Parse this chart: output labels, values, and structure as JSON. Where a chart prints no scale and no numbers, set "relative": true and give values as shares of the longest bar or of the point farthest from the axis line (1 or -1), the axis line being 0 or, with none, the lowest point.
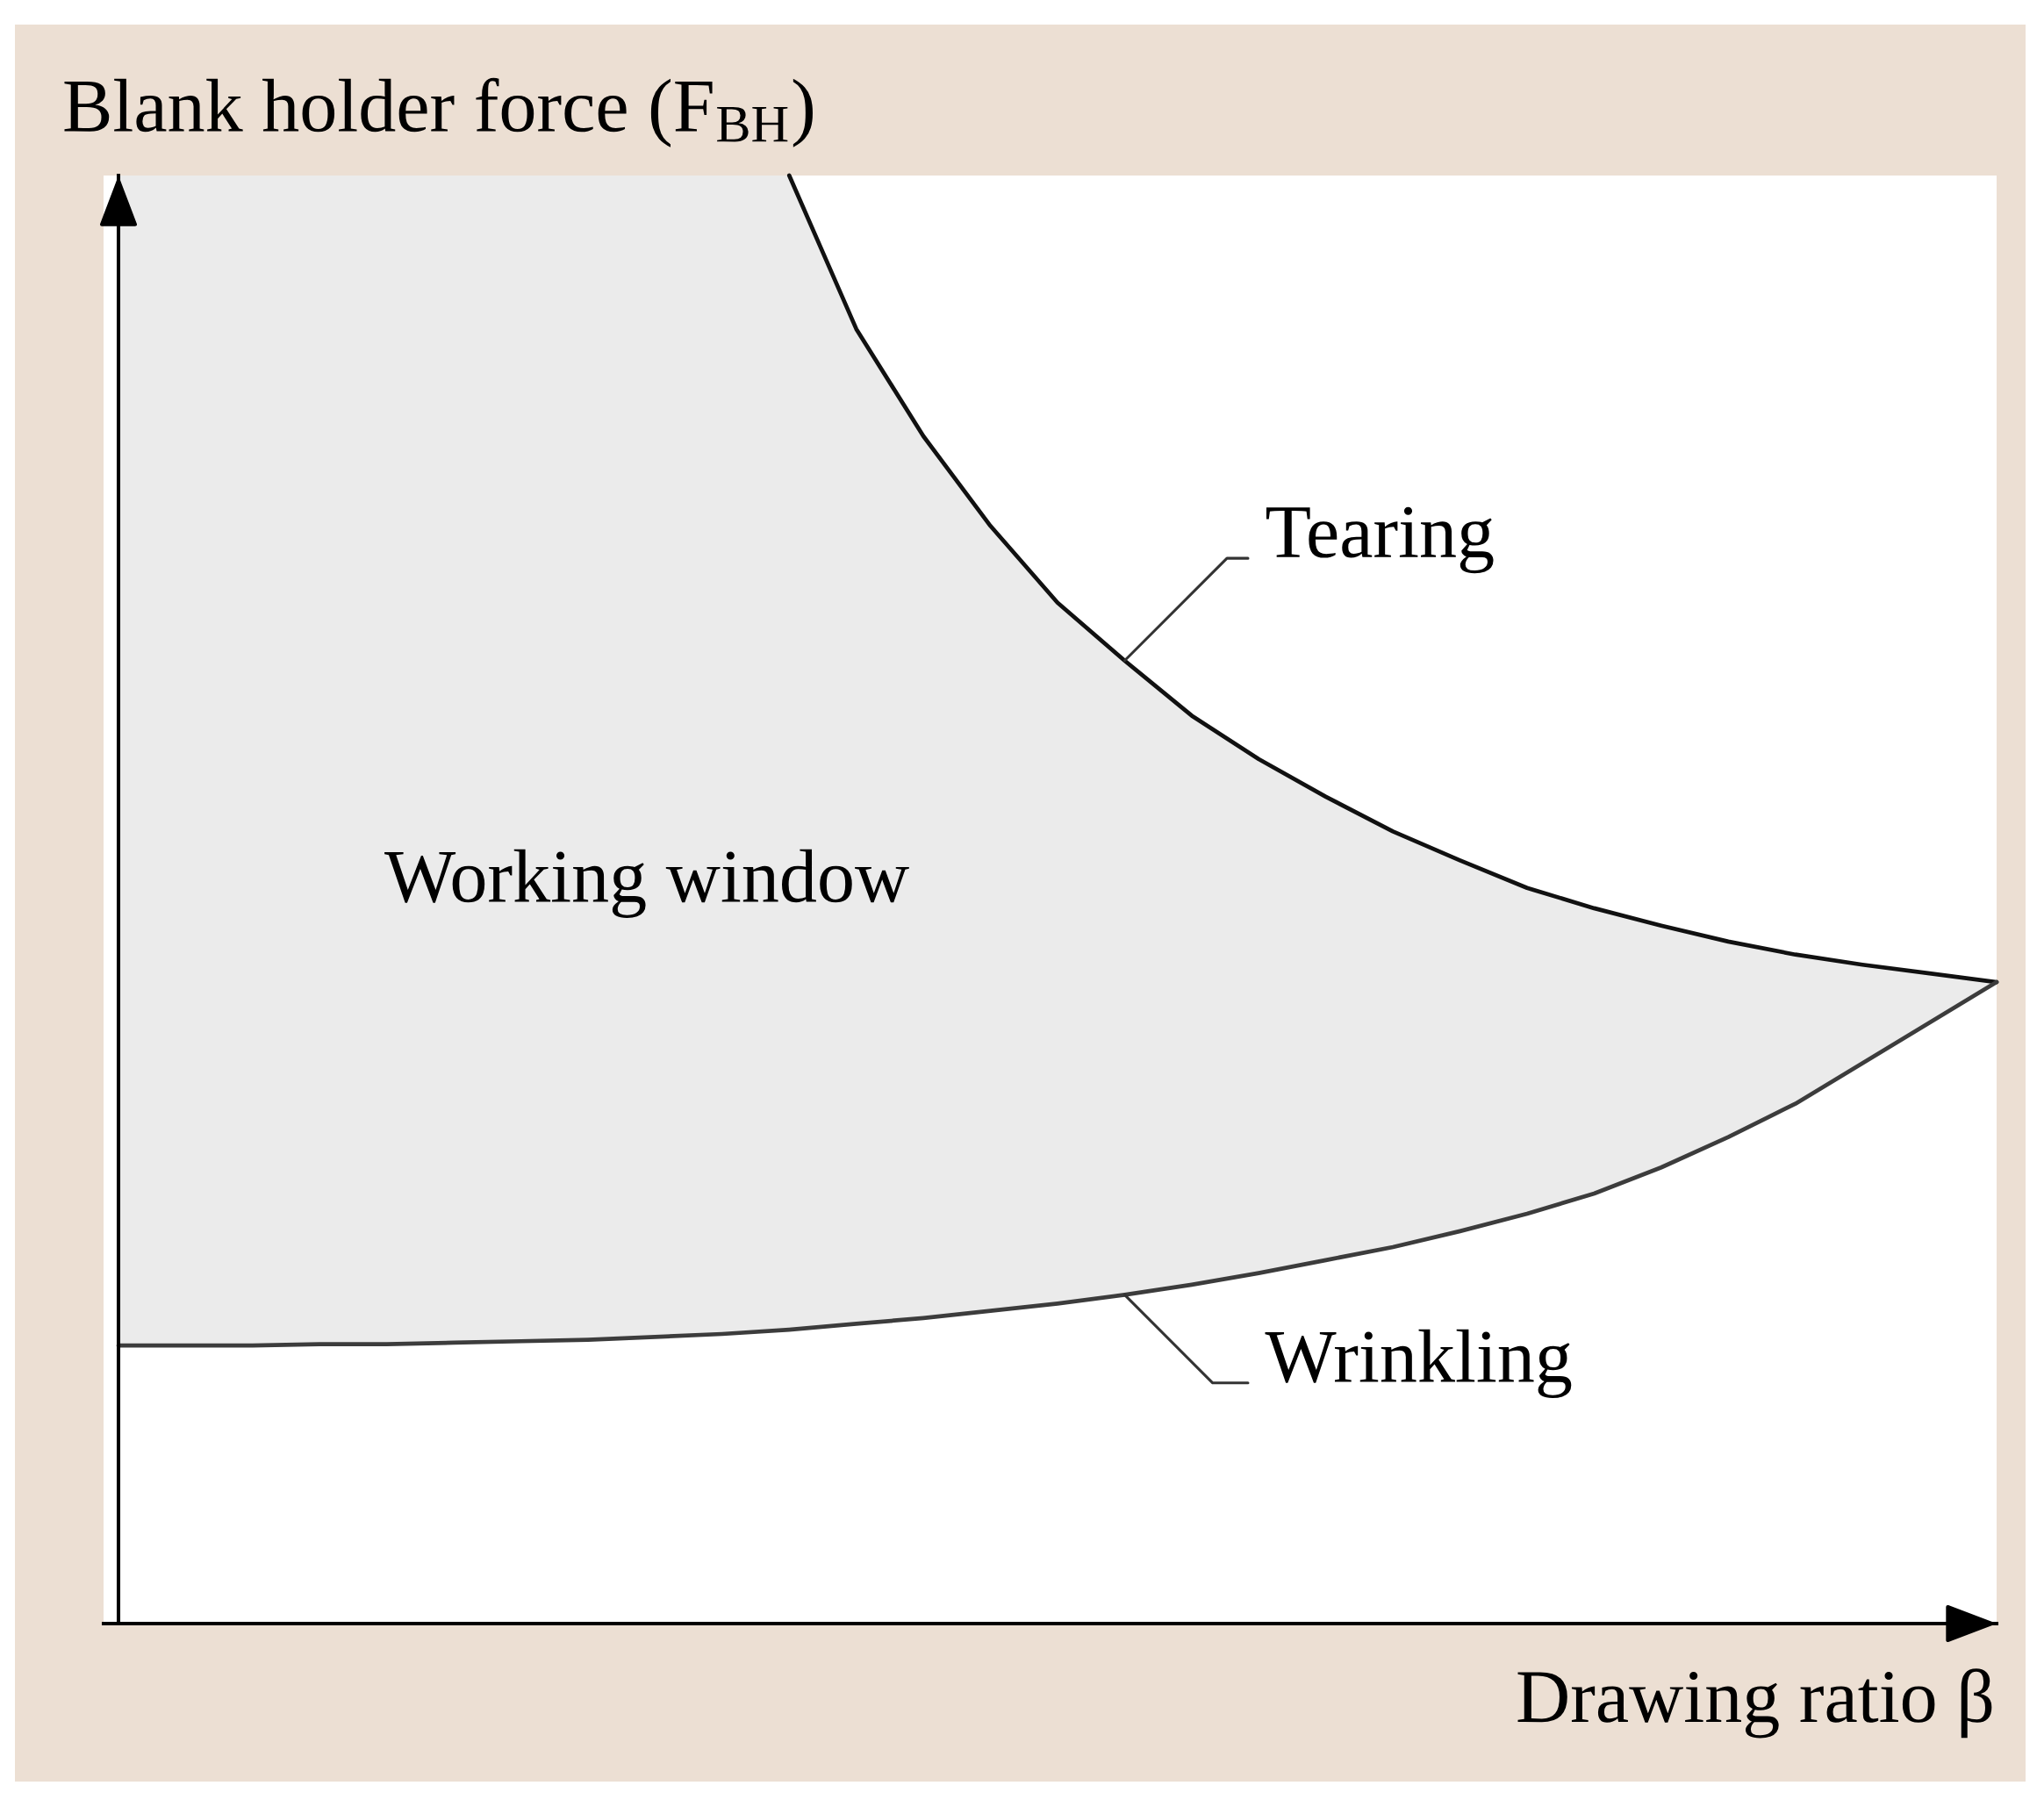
{
  "chart_data": {
    "type": "line",
    "relative": true,
    "xlabel": "Drawing ratio β",
    "ylabel": "Blank holder force (F$_{BH}$)",
    "annotations": [
      "Working window"
    ],
    "categories": [
      null,
      null,
      null,
      null,
      null,
      null,
      null,
      null,
      null,
      null,
      null,
      null,
      null,
      null,
      null,
      null,
      null,
      null,
      null,
      null,
      null,
      null,
      null,
      null,
      null,
      null,
      null,
      null,
      null
    ],
    "series": [
      {
        "name": "Tearing",
        "color": "#111111",
        "values": [
          null,
          null,
          null,
          null,
          null,
          null,
          null,
          null,
          null,
          null,
          1.0,
          0.894,
          0.82,
          0.758,
          0.705,
          0.665,
          0.627,
          0.597,
          0.571,
          0.547,
          0.527,
          0.508,
          0.494,
          0.482,
          0.471,
          0.462,
          0.455,
          0.449,
          0.443
        ]
      },
      {
        "name": "Wrinkling",
        "color": "#3c3c3c",
        "values": [
          0.192,
          0.192,
          0.192,
          0.193,
          0.193,
          0.194,
          0.195,
          0.196,
          0.198,
          0.2,
          0.203,
          0.207,
          0.211,
          0.216,
          0.221,
          0.227,
          0.234,
          0.242,
          0.251,
          0.26,
          0.271,
          0.283,
          0.297,
          0.315,
          0.336,
          0.359,
          0.387,
          0.415,
          0.443
        ],
        "lower": [
          0.192,
          0.192,
          0.192,
          0.193,
          0.193,
          0.194,
          0.195,
          0.196,
          0.198,
          0.2,
          0.203,
          0.207,
          0.211,
          0.216,
          0.221,
          0.227,
          0.234,
          0.242,
          0.251,
          0.26,
          0.271,
          0.283,
          0.297,
          0.315,
          0.336,
          0.359,
          0.387,
          0.415,
          0.443
        ],
        "upper": [
          1.0,
          1.0,
          1.0,
          1.0,
          1.0,
          1.0,
          1.0,
          1.0,
          1.0,
          1.0,
          1.0,
          0.894,
          0.82,
          0.758,
          0.705,
          0.665,
          0.627,
          0.597,
          0.571,
          0.547,
          0.527,
          0.508,
          0.494,
          0.482,
          0.471,
          0.462,
          0.455,
          0.449,
          0.443
        ]
      }
    ]
  }
}
